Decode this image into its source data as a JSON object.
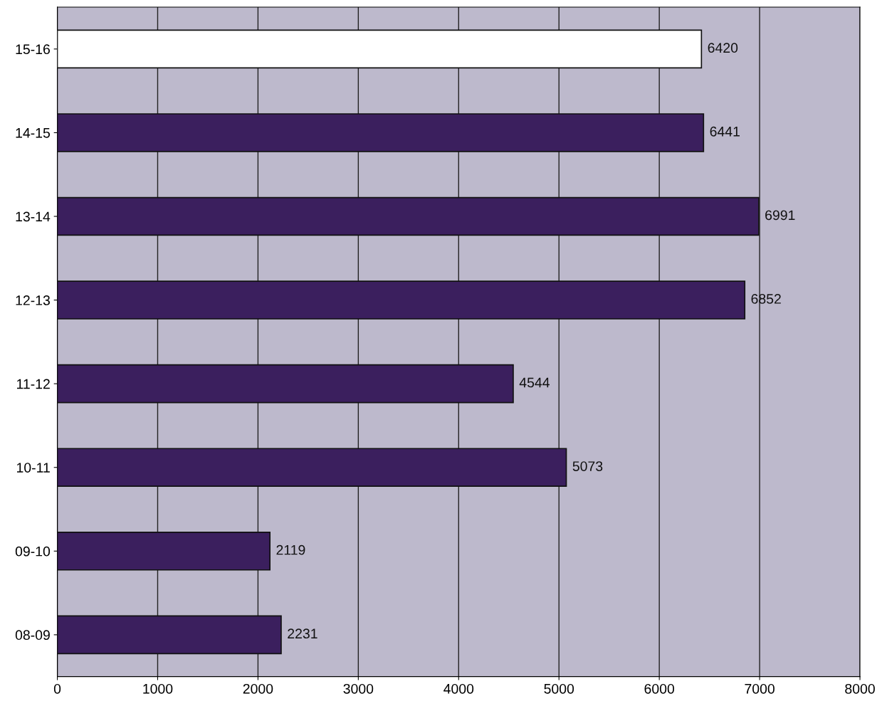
{
  "chart_data": {
    "type": "bar",
    "orientation": "horizontal",
    "categories": [
      "15-16",
      "14-15",
      "13-14",
      "12-13",
      "11-12",
      "10-11",
      "09-10",
      "08-09"
    ],
    "values": [
      6420,
      6441,
      6991,
      6852,
      4544,
      5073,
      2119,
      2231
    ],
    "colors": [
      "#ffffff",
      "#3b1f5e",
      "#3b1f5e",
      "#3b1f5e",
      "#3b1f5e",
      "#3b1f5e",
      "#3b1f5e",
      "#3b1f5e"
    ],
    "xlim": [
      0,
      8000
    ],
    "xticks": [
      0,
      1000,
      2000,
      3000,
      4000,
      5000,
      6000,
      7000,
      8000
    ],
    "grid": "x",
    "data_labels": true,
    "legend": false
  }
}
